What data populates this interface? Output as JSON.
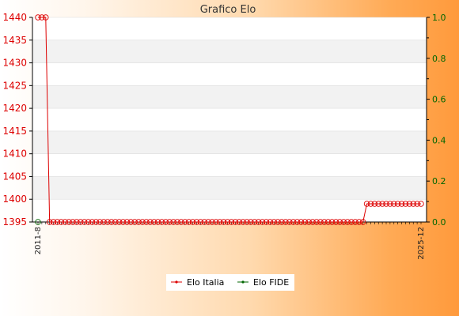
{
  "chart_data": {
    "type": "line",
    "title": "Grafico Elo",
    "xlabel": "",
    "ylabel": "",
    "ylim_left": [
      1395,
      1440
    ],
    "ylim_right": [
      0.0,
      1.0
    ],
    "yticks_left": [
      1395,
      1400,
      1405,
      1410,
      1415,
      1420,
      1425,
      1430,
      1435,
      1440
    ],
    "yticks_right": [
      "0.0",
      "0.2",
      "0.4",
      "0.6",
      "0.8",
      "1.0"
    ],
    "grid": "horizontal bands",
    "legend": "bottom-center",
    "x_first_label": "2011-8",
    "x_last_label": "2025-12",
    "point_count": 100,
    "series": [
      {
        "name": "Elo Italia",
        "axis": "left",
        "color": "#dd0000",
        "segments": [
          {
            "from": 0,
            "to": 2,
            "value": 1440
          },
          {
            "from": 3,
            "to": 84,
            "value": 1395
          },
          {
            "from": 85,
            "to": 99,
            "value": 1399
          }
        ]
      },
      {
        "name": "Elo FIDE",
        "axis": "right",
        "color": "#006600",
        "points": [
          {
            "index": 0,
            "value": 0.0
          }
        ]
      }
    ]
  }
}
